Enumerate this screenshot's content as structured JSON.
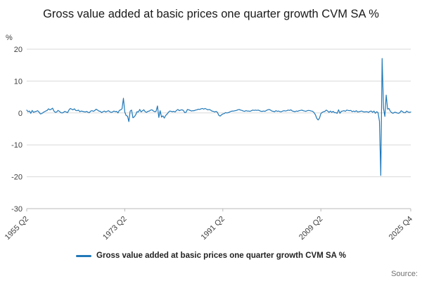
{
  "title": "Gross value added at basic prices one quarter growth CVM SA %",
  "y_unit_label": "%",
  "legend": {
    "label": "Gross value added at basic prices one quarter growth CVM SA %"
  },
  "source_label": "Source:",
  "colors": {
    "line": "#2078b8",
    "grid": "#d9d9d9",
    "axis": "#b8b8b8",
    "tick_text": "#414042"
  },
  "chart_data": {
    "type": "line",
    "title": "Gross value added at basic prices one quarter growth CVM SA %",
    "xlabel": "",
    "ylabel": "%",
    "ylim": [
      -30,
      20
    ],
    "grid": "horizontal",
    "legend_position": "bottom",
    "frequency": "quarterly",
    "x_start": "1955 Q2",
    "x_end": "2025 Q4",
    "y_ticks": [
      20,
      10,
      0,
      -10,
      -20,
      -30
    ],
    "x_ticks": [
      {
        "label": "1955 Q2",
        "index": 0
      },
      {
        "label": "1973 Q2",
        "index": 72
      },
      {
        "label": "1991 Q2",
        "index": 144
      },
      {
        "label": "2009 Q2",
        "index": 216
      },
      {
        "label": "2025 Q4",
        "index": 282
      }
    ],
    "series": [
      {
        "name": "Gross value added at basic prices one quarter growth CVM SA %",
        "values": [
          0.9,
          0.4,
          0.6,
          -0.1,
          0.8,
          0.2,
          0.4,
          0.5,
          0.7,
          0.3,
          -0.3,
          -0.2,
          0.1,
          0.4,
          0.6,
          0.8,
          1.3,
          1.0,
          1.2,
          1.5,
          0.6,
          0.2,
          0.3,
          0.8,
          0.5,
          0.1,
          0.0,
          0.2,
          0.5,
          0.3,
          0.1,
          0.9,
          1.4,
          1.2,
          1.0,
          1.3,
          0.8,
          0.7,
          0.9,
          0.4,
          0.6,
          0.5,
          0.4,
          0.3,
          0.5,
          0.2,
          0.1,
          0.6,
          0.7,
          0.5,
          0.8,
          1.2,
          0.9,
          0.6,
          0.5,
          0.1,
          0.4,
          0.6,
          0.3,
          0.5,
          0.7,
          0.4,
          0.2,
          0.3,
          0.6,
          0.4,
          0.5,
          0.0,
          0.8,
          1.0,
          1.3,
          4.6,
          0.3,
          -0.8,
          -1.0,
          -2.7,
          0.6,
          0.9,
          -1.5,
          -1.2,
          -0.6,
          0.4,
          0.3,
          1.1,
          0.3,
          0.7,
          1.0,
          0.4,
          0.2,
          0.5,
          0.6,
          0.9,
          1.0,
          0.6,
          0.4,
          0.5,
          2.2,
          -1.4,
          0.7,
          -1.3,
          -0.9,
          -1.6,
          -0.8,
          -0.4,
          0.2,
          0.6,
          0.5,
          0.4,
          0.5,
          0.3,
          0.8,
          1.1,
          0.7,
          0.9,
          1.0,
          0.8,
          0.1,
          0.2,
          1.1,
          1.0,
          0.8,
          0.6,
          0.7,
          0.7,
          0.9,
          1.0,
          1.2,
          1.1,
          1.3,
          1.4,
          1.2,
          1.4,
          1.2,
          1.0,
          1.1,
          0.9,
          0.6,
          0.5,
          0.3,
          0.5,
          0.2,
          -0.7,
          -1.0,
          -0.6,
          -0.3,
          -0.2,
          0.1,
          0.0,
          0.1,
          0.3,
          0.5,
          0.6,
          0.6,
          0.7,
          0.8,
          1.0,
          1.1,
          0.9,
          0.8,
          0.6,
          0.5,
          0.7,
          0.6,
          0.6,
          0.5,
          0.7,
          0.9,
          0.8,
          0.9,
          0.8,
          0.9,
          0.7,
          0.5,
          0.5,
          0.6,
          0.5,
          0.8,
          1.0,
          1.1,
          0.9,
          0.6,
          0.5,
          0.4,
          0.7,
          0.5,
          0.6,
          0.4,
          0.4,
          0.6,
          0.7,
          0.6,
          0.7,
          0.9,
          0.8,
          1.0,
          0.6,
          0.5,
          0.4,
          0.6,
          0.5,
          0.7,
          0.8,
          0.9,
          0.7,
          0.6,
          0.5,
          0.7,
          0.8,
          0.7,
          0.6,
          0.5,
          0.1,
          -0.6,
          -1.7,
          -2.2,
          -1.6,
          -0.2,
          0.2,
          0.4,
          0.5,
          0.9,
          0.6,
          0.2,
          0.6,
          0.2,
          0.5,
          0.1,
          0.1,
          -0.1,
          1.0,
          -0.1,
          0.5,
          0.6,
          0.7,
          0.5,
          0.9,
          0.8,
          0.7,
          0.8,
          0.4,
          0.6,
          0.4,
          0.7,
          0.3,
          0.4,
          0.5,
          0.6,
          0.4,
          0.3,
          0.4,
          0.4,
          0.2,
          0.5,
          0.6,
          0.2,
          0.6,
          -0.1,
          0.4,
          0.1,
          -2.6,
          -19.6,
          17.1,
          1.4,
          -1.1,
          5.6,
          1.2,
          1.4,
          0.5,
          0.1,
          -0.1,
          0.2,
          0.2,
          0.0,
          -0.1,
          0.1,
          0.7,
          0.4,
          0.1,
          0.1,
          0.6,
          0.3,
          0.2,
          0.3
        ]
      }
    ]
  }
}
